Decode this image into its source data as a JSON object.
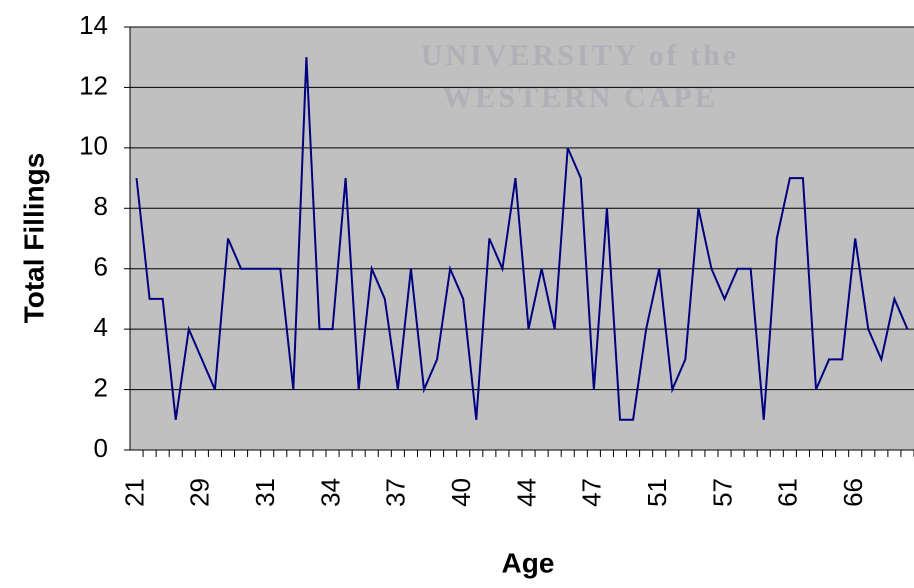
{
  "chart_data": {
    "type": "line",
    "xlabel": "Age",
    "ylabel": "Total Fillings",
    "annotations": [
      "UNIVERSITY of the",
      "WESTERN CAPE"
    ],
    "categories": [
      "21",
      null,
      null,
      null,
      null,
      "29",
      null,
      null,
      null,
      null,
      "31",
      null,
      null,
      null,
      null,
      "34",
      null,
      null,
      null,
      null,
      "37",
      null,
      null,
      null,
      null,
      "40",
      null,
      null,
      null,
      null,
      "44",
      null,
      null,
      null,
      null,
      "47",
      null,
      null,
      null,
      null,
      "51",
      null,
      null,
      null,
      null,
      "57",
      null,
      null,
      null,
      null,
      "61",
      null,
      null,
      null,
      null,
      "66",
      null,
      null,
      null,
      null
    ],
    "series": [
      {
        "name": "Total Fillings",
        "color": "#000080",
        "values": [
          9,
          5,
          5,
          1,
          4,
          3,
          2,
          7,
          6,
          6,
          6,
          6,
          2,
          13,
          4,
          4,
          9,
          2,
          6,
          5,
          2,
          6,
          2,
          3,
          6,
          5,
          1,
          7,
          6,
          9,
          4,
          6,
          4,
          10,
          9,
          2,
          8,
          1,
          1,
          4,
          6,
          2,
          3,
          8,
          6,
          5,
          6,
          6,
          1,
          7,
          9,
          9,
          2,
          3,
          3,
          7,
          4,
          3,
          5,
          4
        ]
      }
    ],
    "ylim": [
      0,
      14
    ],
    "yticks": [
      0,
      2,
      4,
      6,
      8,
      10,
      12,
      14
    ],
    "grid": true,
    "background": "#c0c0c0"
  }
}
